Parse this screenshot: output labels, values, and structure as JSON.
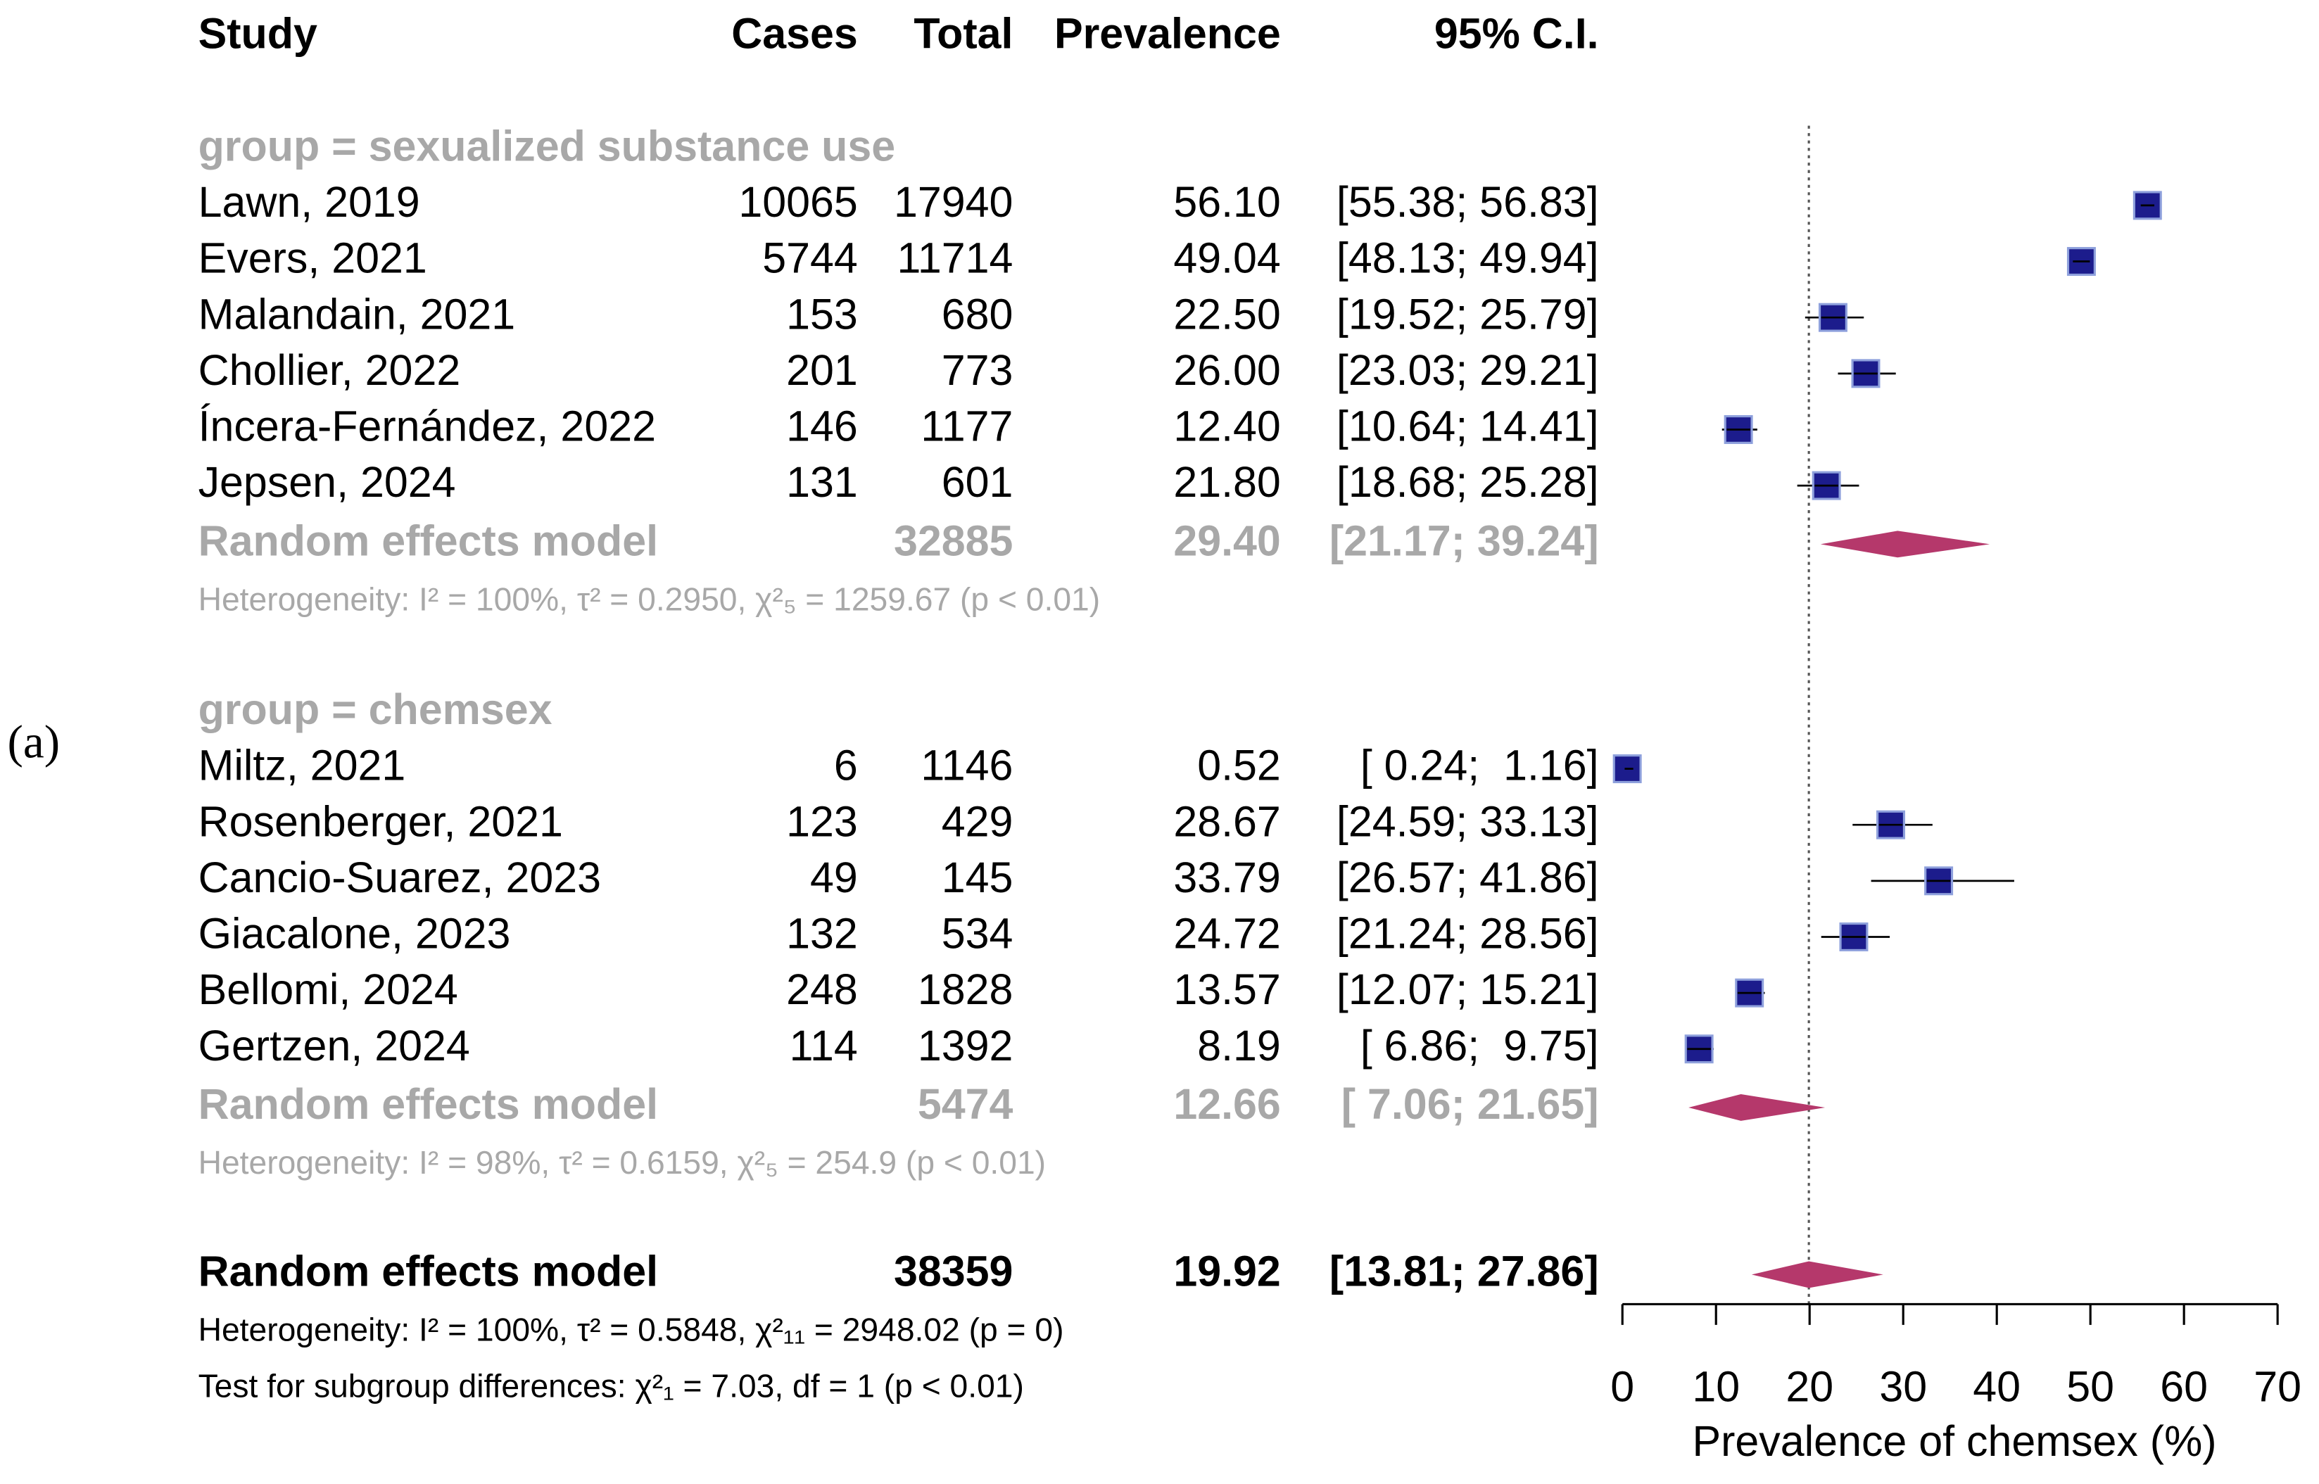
{
  "chart_data": {
    "type": "forest",
    "panel_label": "(a)",
    "columns": [
      "Study",
      "Cases",
      "Total",
      "Prevalence",
      "95% C.I."
    ],
    "groups": [
      {
        "title": "group = sexualized substance use",
        "studies": [
          {
            "study": "Lawn, 2019",
            "cases": 10065,
            "total": 17940,
            "prevalence": {
              "value": 56.1,
              "label": "56.10"
            },
            "ci": [
              55.38,
              56.83
            ],
            "ci_label": "[55.38; 56.83]"
          },
          {
            "study": "Evers, 2021",
            "cases": 5744,
            "total": 11714,
            "prevalence": {
              "value": 49.04,
              "label": "49.04"
            },
            "ci": [
              48.13,
              49.94
            ],
            "ci_label": "[48.13; 49.94]"
          },
          {
            "study": "Malandain, 2021",
            "cases": 153,
            "total": 680,
            "prevalence": {
              "value": 22.5,
              "label": "22.50"
            },
            "ci": [
              19.52,
              25.79
            ],
            "ci_label": "[19.52; 25.79]"
          },
          {
            "study": "Chollier, 2022",
            "cases": 201,
            "total": 773,
            "prevalence": {
              "value": 26,
              "label": "26.00"
            },
            "ci": [
              23.03,
              29.21
            ],
            "ci_label": "[23.03; 29.21]"
          },
          {
            "study": "Íncera-Fernández, 2022",
            "cases": 146,
            "total": 1177,
            "prevalence": {
              "value": 12.4,
              "label": "12.40"
            },
            "ci": [
              10.64,
              14.41
            ],
            "ci_label": "[10.64; 14.41]"
          },
          {
            "study": "Jepsen, 2024",
            "cases": 131,
            "total": 601,
            "prevalence": {
              "value": 21.8,
              "label": "21.80"
            },
            "ci": [
              18.68,
              25.28
            ],
            "ci_label": "[18.68; 25.28]"
          }
        ],
        "model": {
          "study": "Random effects model",
          "total": 32885,
          "prevalence": {
            "value": 29.4,
            "label": "29.40"
          },
          "ci": [
            21.17,
            39.24
          ],
          "ci_label": "[21.17; 39.24]"
        },
        "heterogeneity": "Heterogeneity: I² = 100%, τ² = 0.2950, χ²₅ = 1259.67 (p < 0.01)"
      },
      {
        "title": "group = chemsex",
        "studies": [
          {
            "study": "Miltz, 2021",
            "cases": 6,
            "total": 1146,
            "prevalence": {
              "value": 0.52,
              "label": "0.52"
            },
            "ci": [
              0.24,
              1.16
            ],
            "ci_label": "[ 0.24;  1.16]"
          },
          {
            "study": "Rosenberger, 2021",
            "cases": 123,
            "total": 429,
            "prevalence": {
              "value": 28.67,
              "label": "28.67"
            },
            "ci": [
              24.59,
              33.13
            ],
            "ci_label": "[24.59; 33.13]"
          },
          {
            "study": "Cancio-Suarez, 2023",
            "cases": 49,
            "total": 145,
            "prevalence": {
              "value": 33.79,
              "label": "33.79"
            },
            "ci": [
              26.57,
              41.86
            ],
            "ci_label": "[26.57; 41.86]"
          },
          {
            "study": "Giacalone, 2023",
            "cases": 132,
            "total": 534,
            "prevalence": {
              "value": 24.72,
              "label": "24.72"
            },
            "ci": [
              21.24,
              28.56
            ],
            "ci_label": "[21.24; 28.56]"
          },
          {
            "study": "Bellomi, 2024",
            "cases": 248,
            "total": 1828,
            "prevalence": {
              "value": 13.57,
              "label": "13.57"
            },
            "ci": [
              12.07,
              15.21
            ],
            "ci_label": "[12.07; 15.21]"
          },
          {
            "study": "Gertzen, 2024",
            "cases": 114,
            "total": 1392,
            "prevalence": {
              "value": 8.19,
              "label": "8.19"
            },
            "ci": [
              6.86,
              9.75
            ],
            "ci_label": "[ 6.86;  9.75]"
          }
        ],
        "model": {
          "study": "Random effects model",
          "total": 5474,
          "prevalence": {
            "value": 12.66,
            "label": "12.66"
          },
          "ci": [
            7.06,
            21.65
          ],
          "ci_label": "[ 7.06; 21.65]"
        },
        "heterogeneity": "Heterogeneity: I² = 98%, τ² = 0.6159, χ²₅ = 254.9 (p < 0.01)"
      }
    ],
    "overall": {
      "study": "Random effects model",
      "total": 38359,
      "prevalence": {
        "value": 19.92,
        "label": "19.92"
      },
      "ci": [
        13.81,
        27.86
      ],
      "ci_label": "[13.81; 27.86]"
    },
    "overall_heterogeneity": "Heterogeneity: I² = 100%, τ² = 0.5848, χ²₁₁ = 2948.02 (p = 0)",
    "subgroup_test": "Test for subgroup differences: χ²₁ = 7.03, df = 1 (p < 0.01)",
    "xlabel": "Prevalence of chemsex (%)",
    "xlim": [
      0,
      70
    ],
    "xticks": [
      0,
      10,
      20,
      30,
      40,
      50,
      60,
      70
    ],
    "box_color": "#1c1c8c",
    "diamond_color": "#b5386b"
  }
}
